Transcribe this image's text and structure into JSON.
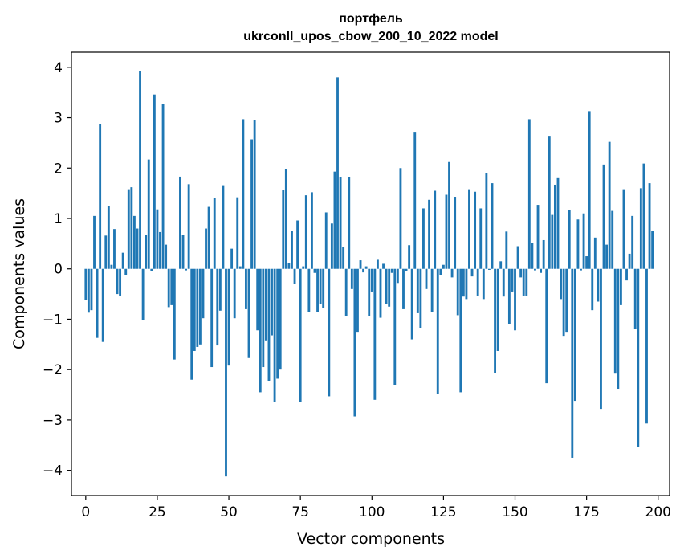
{
  "chart_data": {
    "type": "bar",
    "title_line1": "портфель",
    "title_line2": "ukrconll_upos_cbow_200_10_2022 model",
    "xlabel": "Vector components",
    "ylabel": "Components values",
    "xlim": [
      -5,
      204
    ],
    "ylim": [
      -4.5,
      4.3
    ],
    "x_ticks": [
      0,
      25,
      50,
      75,
      100,
      125,
      150,
      175,
      200
    ],
    "x_tick_labels": [
      "0",
      "25",
      "50",
      "75",
      "100",
      "125",
      "150",
      "175",
      "200"
    ],
    "y_ticks": [
      4,
      3,
      2,
      1,
      0,
      -1,
      -2,
      -3,
      -4
    ],
    "y_tick_labels": [
      "4",
      "3",
      "2",
      "1",
      "0",
      "−1",
      "−2",
      "−3",
      "−4"
    ],
    "bar_color": "#1f77b4",
    "values": [
      -0.62,
      -0.87,
      -0.82,
      1.05,
      -1.37,
      2.87,
      -1.45,
      0.66,
      1.25,
      0.08,
      0.79,
      -0.5,
      -0.53,
      0.32,
      -0.13,
      1.58,
      1.62,
      1.05,
      0.8,
      3.93,
      -1.02,
      0.68,
      2.17,
      -0.05,
      3.46,
      1.18,
      0.73,
      3.27,
      0.48,
      -0.76,
      -0.72,
      -1.8,
      0.0,
      1.83,
      0.67,
      -0.03,
      1.68,
      -2.2,
      -1.63,
      -1.55,
      -1.5,
      -0.98,
      0.8,
      1.23,
      -1.95,
      1.4,
      -1.52,
      -0.83,
      1.66,
      -4.12,
      -1.92,
      0.4,
      -0.98,
      1.42,
      0.05,
      2.97,
      -0.8,
      -1.77,
      2.57,
      2.95,
      -1.22,
      -2.45,
      -1.95,
      -1.42,
      -2.22,
      -1.32,
      -2.65,
      -2.18,
      -2.0,
      1.57,
      1.98,
      0.12,
      0.75,
      -0.3,
      0.96,
      -2.65,
      0.05,
      1.46,
      -0.85,
      1.52,
      -0.08,
      -0.85,
      -0.7,
      -0.77,
      1.12,
      -2.53,
      0.9,
      1.93,
      3.8,
      1.82,
      0.43,
      -0.93,
      1.82,
      -0.4,
      -2.93,
      -1.25,
      0.17,
      -0.07,
      0.05,
      -0.93,
      -0.45,
      -2.6,
      0.18,
      -0.97,
      0.1,
      -0.7,
      -0.75,
      -0.08,
      -2.3,
      -0.28,
      2.0,
      -0.8,
      -0.05,
      0.47,
      -1.4,
      2.72,
      -0.88,
      -1.17,
      1.2,
      -0.4,
      1.37,
      -0.85,
      1.55,
      -2.48,
      -0.13,
      0.08,
      1.47,
      2.12,
      -0.17,
      1.43,
      -0.92,
      -2.45,
      -0.55,
      -0.6,
      1.58,
      -0.15,
      1.53,
      -0.53,
      1.2,
      -0.6,
      1.9,
      -0.02,
      1.7,
      -2.07,
      -1.63,
      0.15,
      -0.55,
      0.74,
      -1.1,
      -0.45,
      -1.22,
      0.45,
      -0.17,
      -0.53,
      -0.53,
      2.97,
      0.52,
      -0.03,
      1.27,
      -0.08,
      0.57,
      -2.27,
      2.64,
      1.07,
      1.67,
      1.8,
      -0.6,
      -1.33,
      -1.25,
      1.17,
      -3.75,
      -2.62,
      0.98,
      -0.03,
      1.1,
      0.25,
      3.13,
      -0.82,
      0.62,
      -0.65,
      -2.78,
      2.07,
      0.48,
      2.52,
      1.15,
      -2.08,
      -2.38,
      -0.72,
      1.58,
      -0.23,
      0.3,
      1.05,
      -1.2,
      -3.53,
      1.6,
      2.09,
      -3.07,
      1.7,
      0.75,
      0.0
    ]
  }
}
